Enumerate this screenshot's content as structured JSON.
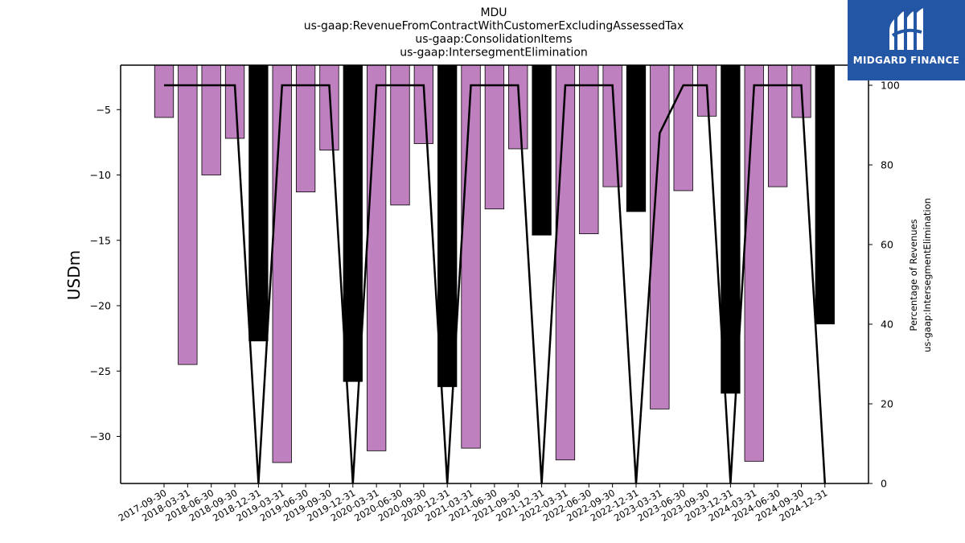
{
  "logo": {
    "text": "MIDGARD FINANCE"
  },
  "chart_data": {
    "type": "bar",
    "title_lines": [
      "MDU",
      "us-gaap:RevenueFromContractWithCustomerExcludingAssessedTax",
      "us-gaap:ConsolidationItems",
      "us-gaap:IntersegmentElimination"
    ],
    "ylabel": "USDm",
    "y2label_lines": [
      "Percentage of Revenues",
      "us-gaap:IntersegmentElimination"
    ],
    "categories": [
      "2017-09-30",
      "2018-03-31",
      "2018-06-30",
      "2018-09-30",
      "2018-12-31",
      "2019-03-31",
      "2019-06-30",
      "2019-09-30",
      "2019-12-31",
      "2020-03-31",
      "2020-06-30",
      "2020-09-30",
      "2020-12-31",
      "2021-03-31",
      "2021-06-30",
      "2021-09-30",
      "2021-12-31",
      "2022-03-31",
      "2022-06-30",
      "2022-09-30",
      "2022-12-31",
      "2023-03-31",
      "2023-06-30",
      "2023-09-30",
      "2023-12-31",
      "2024-03-31",
      "2024-06-30",
      "2024-09-30",
      "2024-12-31"
    ],
    "values": [
      -5.6,
      -24.5,
      -10.0,
      -7.2,
      -22.7,
      -32.0,
      -11.3,
      -8.1,
      -25.8,
      -31.1,
      -12.3,
      -7.6,
      -26.2,
      -30.9,
      -12.6,
      -8.0,
      -14.6,
      -31.8,
      -14.5,
      -10.9,
      -12.8,
      -27.9,
      -11.2,
      -5.5,
      -26.7,
      -31.9,
      -10.9,
      -5.6,
      -21.4
    ],
    "bar_colors": [
      "#bf80bf",
      "#bf80bf",
      "#bf80bf",
      "#bf80bf",
      "#000000",
      "#bf80bf",
      "#bf80bf",
      "#bf80bf",
      "#000000",
      "#bf80bf",
      "#bf80bf",
      "#bf80bf",
      "#000000",
      "#bf80bf",
      "#bf80bf",
      "#bf80bf",
      "#000000",
      "#bf80bf",
      "#bf80bf",
      "#bf80bf",
      "#000000",
      "#bf80bf",
      "#bf80bf",
      "#bf80bf",
      "#000000",
      "#bf80bf",
      "#bf80bf",
      "#bf80bf",
      "#000000"
    ],
    "percent_series": [
      100,
      100,
      100,
      100,
      0,
      100,
      100,
      100,
      0,
      100,
      100,
      100,
      0,
      100,
      100,
      100,
      0,
      100,
      100,
      100,
      0,
      88,
      100,
      100,
      0,
      100,
      100,
      100,
      0
    ],
    "ylim": [
      -33.6,
      -1.6
    ],
    "yticks": [
      -5,
      -10,
      -15,
      -20,
      -25,
      -30
    ],
    "y2lim": [
      0,
      100
    ],
    "y2ticks": [
      0,
      20,
      40,
      60,
      80,
      100
    ],
    "line_color": "#000000"
  }
}
